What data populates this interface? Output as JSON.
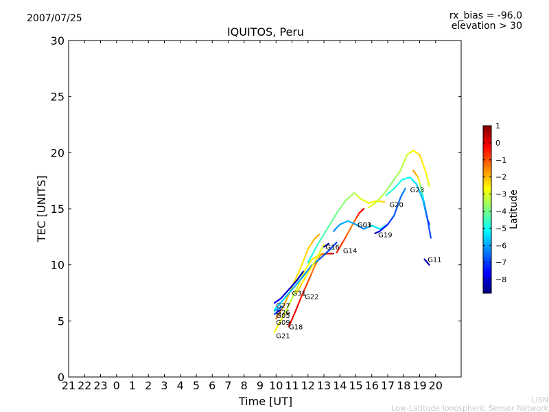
{
  "header": {
    "date": "2007/07/25",
    "rx_bias": "rx_bias = -96.0",
    "elevation": "elevation > 30"
  },
  "footer": {
    "org_short": "LISN",
    "org_long": "Low-Latitude Ionospheric Sensor Network"
  },
  "chart_data": {
    "type": "line",
    "title": "IQUITOS, Peru",
    "xlabel": "Time [UT]",
    "ylabel": "TEC [UNITS]",
    "ylim": [
      0,
      30
    ],
    "yticks": [
      0,
      5,
      10,
      15,
      20,
      25,
      30
    ],
    "xlim": [
      21,
      45.6
    ],
    "xticks": [
      21,
      22,
      23,
      24,
      25,
      26,
      27,
      28,
      29,
      30,
      31,
      32,
      33,
      34,
      35,
      36,
      37,
      38,
      39,
      40,
      41,
      42,
      43,
      44
    ],
    "xtick_labels": [
      "21",
      "22",
      "23",
      "0",
      "1",
      "2",
      "3",
      "4",
      "5",
      "6",
      "7",
      "8",
      "9",
      "10",
      "11",
      "12",
      "13",
      "14",
      "15",
      "16",
      "17",
      "18",
      "19",
      "20"
    ],
    "grid": false,
    "colorbar": {
      "label": "Latitude",
      "range": [
        -8.8,
        1
      ],
      "ticks": [
        1,
        0,
        -1,
        -2,
        -3,
        -4,
        -5,
        -6,
        -7,
        -8
      ],
      "tick_labels": [
        "1",
        "0",
        "−1",
        "−2",
        "−3",
        "−4",
        "−5",
        "−6",
        "−7",
        "−8"
      ],
      "colormap": [
        "#00007f",
        "#0000ff",
        "#007fff",
        "#00ffff",
        "#7fff7f",
        "#ffff00",
        "#ff7f00",
        "#ff0000",
        "#7f0000"
      ]
    },
    "series": [
      {
        "name": "G21",
        "label_at": [
          34.0,
          3.7
        ],
        "points": [
          [
            33.9,
            4.0,
            -2.5
          ],
          [
            34.2,
            4.8,
            -2.8
          ],
          [
            34.6,
            5.8,
            -3.1
          ],
          [
            35.0,
            7.0,
            -3.4
          ],
          [
            35.4,
            8.2,
            -3.0
          ],
          [
            35.8,
            9.5,
            -2.8
          ],
          [
            36.2,
            10.4,
            -2.6
          ],
          [
            36.7,
            10.9,
            -2.4
          ],
          [
            37.0,
            11.0,
            -2.2
          ]
        ]
      },
      {
        "name": "G09",
        "label_at": [
          34.0,
          4.9
        ],
        "points": [
          [
            34.0,
            5.2,
            -1.4
          ],
          [
            34.5,
            6.4,
            -1.8
          ],
          [
            35.0,
            8.0,
            -2.2
          ],
          [
            35.5,
            9.6,
            -2.5
          ],
          [
            36.0,
            11.4,
            -2.3
          ],
          [
            36.4,
            12.3,
            -2.0
          ],
          [
            36.7,
            12.7,
            -1.8
          ]
        ]
      },
      {
        "name": "G18",
        "label_at": [
          34.8,
          4.5
        ],
        "points": [
          [
            34.8,
            4.5,
            0.2
          ],
          [
            35.2,
            5.8,
            -0.1
          ],
          [
            35.6,
            7.2,
            -0.5
          ],
          [
            36.0,
            8.5,
            -0.9
          ],
          [
            36.4,
            9.8,
            -1.4
          ],
          [
            36.8,
            10.9,
            -1.8
          ],
          [
            37.2,
            11.0,
            -0.2
          ],
          [
            37.6,
            11.0,
            0.5
          ]
        ]
      },
      {
        "name": "G05",
        "label_at": [
          34.0,
          5.5
        ],
        "points": [
          [
            33.9,
            5.6,
            -6.8
          ],
          [
            34.1,
            5.8,
            -7.3
          ],
          [
            34.3,
            6.0,
            -7.8
          ]
        ]
      },
      {
        "name": "G26",
        "label_at": [
          34.0,
          5.8
        ],
        "points": [
          [
            33.9,
            5.9,
            -5.9
          ],
          [
            34.2,
            6.1,
            -6.2
          ],
          [
            34.4,
            6.3,
            -6.5
          ]
        ]
      },
      {
        "name": "G27",
        "label_at": [
          34.0,
          6.4
        ],
        "points": [
          [
            33.9,
            6.6,
            -7.6
          ],
          [
            34.3,
            7.0,
            -7.8
          ],
          [
            34.8,
            7.8,
            -8.0
          ],
          [
            35.3,
            8.6,
            -8.2
          ],
          [
            35.7,
            9.4,
            -8.4
          ]
        ]
      },
      {
        "name": "G31",
        "label_at": [
          35.0,
          7.5
        ],
        "points": [
          [
            33.9,
            6.0,
            -5.4
          ],
          [
            34.4,
            6.8,
            -5.6
          ],
          [
            35.0,
            7.8,
            -5.8
          ],
          [
            35.6,
            8.8,
            -6.0
          ],
          [
            36.2,
            9.9,
            -6.3
          ],
          [
            36.8,
            10.6,
            -6.6
          ],
          [
            37.4,
            11.4,
            -6.8
          ],
          [
            37.8,
            12.0,
            -7.0
          ]
        ]
      },
      {
        "name": "G22",
        "label_at": [
          35.8,
          7.2
        ],
        "points": [
          [
            35.3,
            7.5,
            -2.2
          ],
          [
            35.8,
            8.8,
            -2.5
          ],
          [
            36.4,
            10.2,
            -2.8
          ],
          [
            37.0,
            11.8,
            -3.0
          ]
        ]
      },
      {
        "name": "G16",
        "label_at": [
          37.1,
          11.6
        ],
        "points": [
          [
            37.0,
            11.6,
            -8.5
          ],
          [
            37.3,
            11.9,
            -8.3
          ]
        ]
      },
      {
        "name": "G14",
        "label_at": [
          38.2,
          11.3
        ],
        "points": [
          [
            37.8,
            11.1,
            -0.4
          ],
          [
            38.3,
            12.3,
            -0.9
          ],
          [
            38.8,
            13.6,
            -1.5
          ],
          [
            39.2,
            14.6,
            -0.5
          ],
          [
            39.5,
            15.0,
            0.2
          ]
        ]
      },
      {
        "name": "G01",
        "label_at": [
          39.1,
          13.6
        ],
        "points": [
          [
            36.0,
            10.2,
            -5.0
          ],
          [
            36.6,
            11.8,
            -4.6
          ],
          [
            37.2,
            13.2,
            -4.3
          ],
          [
            37.8,
            14.6,
            -4.0
          ],
          [
            38.4,
            15.8,
            -3.7
          ],
          [
            38.9,
            16.4,
            -3.5
          ],
          [
            39.3,
            15.9,
            -3.0
          ],
          [
            39.8,
            15.5,
            -2.8
          ],
          [
            40.3,
            15.7,
            -2.6
          ],
          [
            40.8,
            15.6,
            -2.2
          ]
        ]
      },
      {
        "name": "G03",
        "label_at": [
          39.1,
          13.6
        ],
        "points": [
          [
            37.6,
            13.0,
            -6.3
          ],
          [
            38.0,
            13.6,
            -6.0
          ],
          [
            38.5,
            13.9,
            -5.8
          ],
          [
            39.0,
            13.6,
            -6.0
          ],
          [
            39.5,
            13.2,
            -6.4
          ],
          [
            40.0,
            13.5,
            -5.5
          ],
          [
            40.5,
            13.2,
            -5.2
          ],
          [
            41.0,
            13.6,
            -5.0
          ]
        ]
      },
      {
        "name": "G19",
        "label_at": [
          40.4,
          12.7
        ],
        "points": [
          [
            40.2,
            12.8,
            -8.3
          ],
          [
            40.5,
            13.0,
            -7.8
          ],
          [
            41.0,
            13.6,
            -7.2
          ],
          [
            41.4,
            14.4,
            -6.8
          ],
          [
            41.8,
            16.0,
            -6.5
          ],
          [
            42.1,
            16.8,
            -6.2
          ]
        ]
      },
      {
        "name": "G20",
        "label_at": [
          41.1,
          15.4
        ],
        "points": [
          [
            39.8,
            15.1,
            -2.9
          ],
          [
            40.3,
            15.6,
            -3.2
          ],
          [
            40.8,
            16.4,
            -3.5
          ],
          [
            41.3,
            17.4,
            -3.8
          ],
          [
            41.8,
            18.4,
            -3.4
          ],
          [
            42.2,
            19.8,
            -3.1
          ],
          [
            42.6,
            20.2,
            -2.8
          ],
          [
            43.0,
            19.8,
            -2.3
          ],
          [
            43.4,
            18.2,
            -2.6
          ],
          [
            43.6,
            17.0,
            -3.0
          ]
        ]
      },
      {
        "name": "G23",
        "label_at": [
          42.4,
          16.7
        ],
        "points": [
          [
            40.9,
            16.2,
            -4.6
          ],
          [
            41.4,
            16.8,
            -4.7
          ],
          [
            41.9,
            17.6,
            -4.9
          ],
          [
            42.4,
            17.8,
            -5.1
          ],
          [
            42.8,
            17.2,
            -5.5
          ],
          [
            43.2,
            15.8,
            -6.0
          ],
          [
            43.5,
            14.0,
            -6.5
          ],
          [
            43.7,
            12.4,
            -7.0
          ]
        ]
      },
      {
        "name": "G11",
        "label_at": [
          43.5,
          10.5
        ],
        "points": [
          [
            42.6,
            18.4,
            -1.4
          ],
          [
            42.9,
            17.8,
            -2.2
          ],
          [
            43.1,
            16.8,
            -4.0
          ],
          [
            43.3,
            15.4,
            -6.0
          ],
          [
            43.5,
            14.0,
            -6.8
          ],
          [
            43.6,
            13.6,
            -7.2
          ]
        ]
      },
      {
        "name": "",
        "label_at": null,
        "points": [
          [
            43.3,
            10.5,
            -8.2
          ],
          [
            43.6,
            10.0,
            -8.4
          ]
        ]
      }
    ]
  }
}
